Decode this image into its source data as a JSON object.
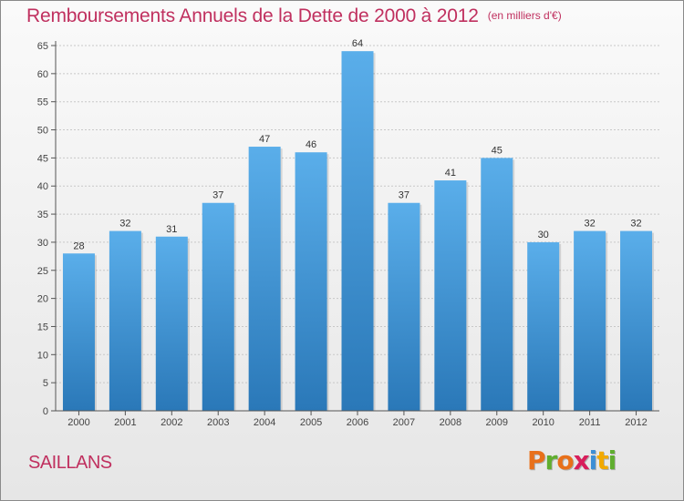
{
  "header": {
    "title": "Remboursements Annuels de la Dette de 2000 à 2012",
    "unit": "(en milliers d'€)"
  },
  "footer": {
    "town": "SAILLANS",
    "brand_letters": [
      "P",
      "r",
      "o",
      "x",
      "i",
      "t",
      "i"
    ],
    "brand_colors": [
      "#e8701a",
      "#5fae2f",
      "#e8701a",
      "#d81e5b",
      "#3d8fd6",
      "#f2a900",
      "#5fae2f"
    ]
  },
  "chart_data": {
    "type": "bar",
    "categories": [
      "2000",
      "2001",
      "2002",
      "2003",
      "2004",
      "2005",
      "2006",
      "2007",
      "2008",
      "2009",
      "2010",
      "2011",
      "2012"
    ],
    "values": [
      28,
      32,
      31,
      37,
      47,
      46,
      64,
      37,
      41,
      45,
      30,
      32,
      32
    ],
    "ylim": [
      0,
      65
    ],
    "yticks": [
      0,
      5,
      10,
      15,
      20,
      25,
      30,
      35,
      40,
      45,
      50,
      55,
      60,
      65
    ],
    "grid": true,
    "bar_color_top": "#5aaeea",
    "bar_color_bottom": "#2a78b8"
  }
}
